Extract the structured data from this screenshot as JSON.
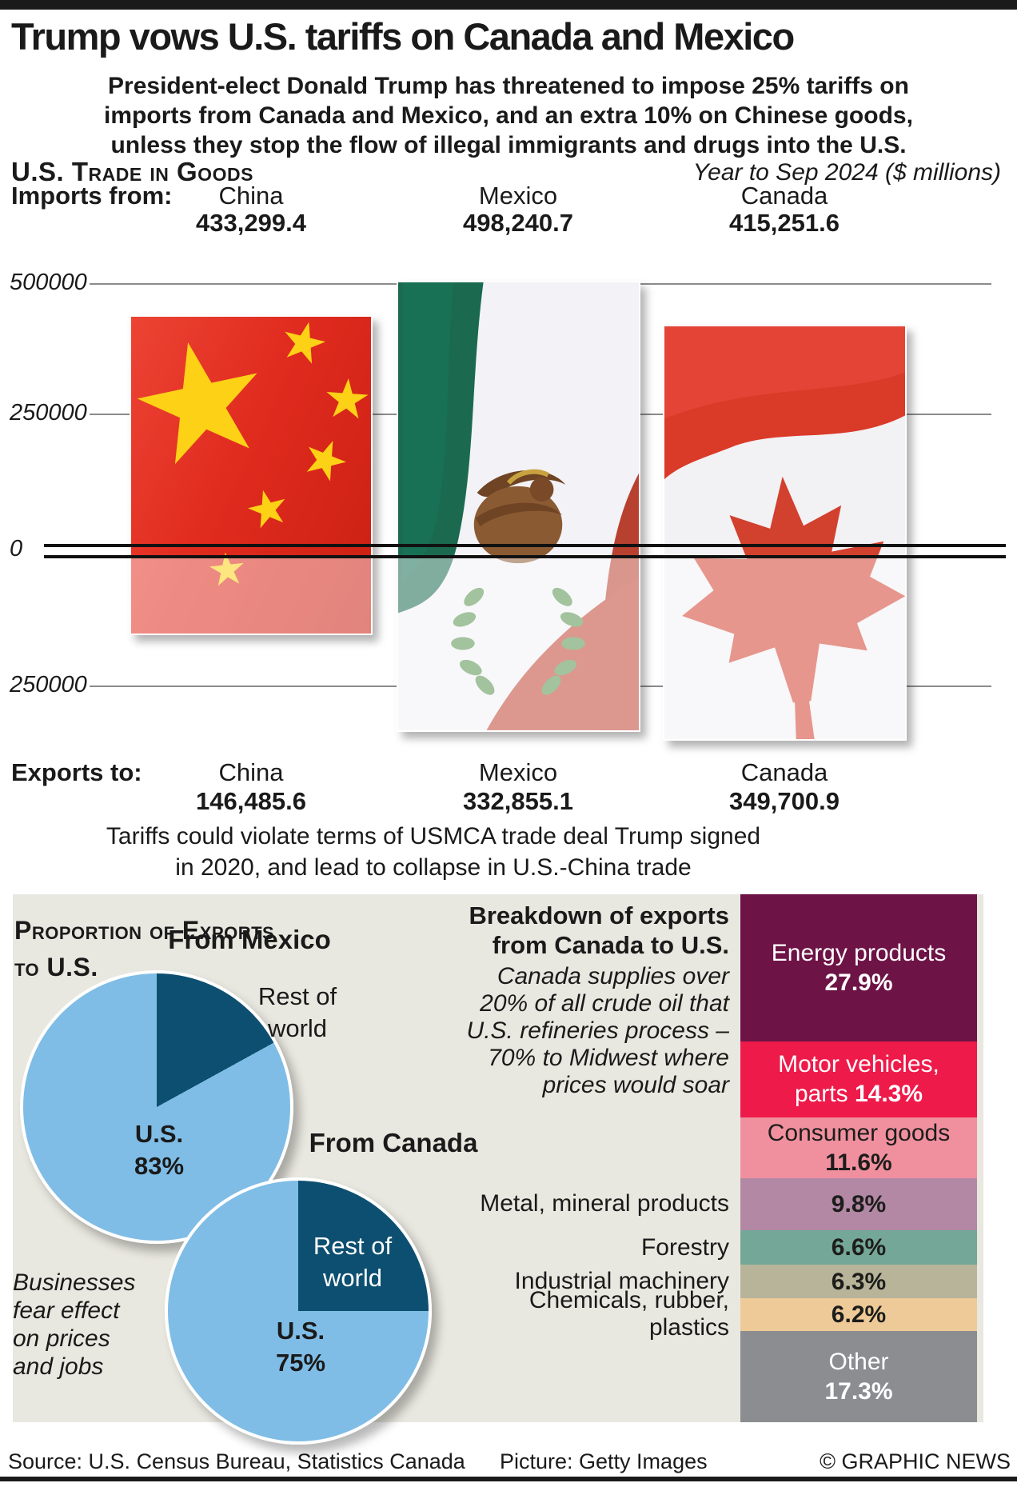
{
  "header": {
    "title": "Trump vows U.S. tariffs on Canada and Mexico",
    "intro_lines": [
      "President-elect Donald Trump has threatened to impose 25% tariffs on",
      "imports from Canada and Mexico, and an extra 10% on Chinese goods,",
      "unless they stop the flow of illegal immigrants and drugs into the U.S."
    ]
  },
  "trade": {
    "heading": "U.S. Trade in Goods",
    "period": "Year to Sep 2024 ($ millions)",
    "imports_label": "Imports from:",
    "exports_label": "Exports to:",
    "countries": [
      "China",
      "Mexico",
      "Canada"
    ],
    "import_values": [
      "433,299.4",
      "498,240.7",
      "415,251.6"
    ],
    "export_values": [
      "146,485.6",
      "332,855.1",
      "349,700.9"
    ],
    "axis": {
      "t500": "500000",
      "t250": "250000",
      "t0": "0",
      "b250": "250000"
    },
    "note_lines": [
      "Tariffs could violate terms of USMCA trade deal Trump signed",
      "in 2020, and lead to collapse in U.S.-China trade"
    ]
  },
  "proportion": {
    "heading_line1": "Proportion of Exports",
    "heading_line2": "to U.S.",
    "mexico": {
      "heading": "From Mexico",
      "us_label": "U.S.",
      "us_pct": "83%",
      "row_line1": "Rest of",
      "row_line2": "world"
    },
    "canada": {
      "heading": "From Canada",
      "us_label": "U.S.",
      "us_pct": "75%",
      "row_line1": "Rest of",
      "row_line2": "world"
    },
    "aside_lines": [
      "Businesses",
      "fear effect",
      "on prices",
      "and jobs"
    ]
  },
  "breakdown": {
    "title_line1": "Breakdown of exports",
    "title_line2": "from Canada to U.S.",
    "note_lines": [
      "Canada supplies over",
      "20% of all crude oil that",
      "U.S. refineries process –",
      "70% to Midwest where",
      "prices would soar"
    ]
  },
  "footer": {
    "source": "Source: U.S. Census Bureau, Statistics Canada",
    "picture": "Picture: Getty Images",
    "copyright": "© GRAPHIC NEWS"
  },
  "chart_data": [
    {
      "type": "bar",
      "title": "U.S. trade in goods",
      "subtitle": "Year to Sep 2024 ($ millions)",
      "orientation": "diverging-vertical-flag-bars",
      "categories": [
        "China",
        "Mexico",
        "Canada"
      ],
      "series": [
        {
          "name": "Imports from",
          "values": [
            433299.4,
            498240.7,
            415251.6
          ]
        },
        {
          "name": "Exports to",
          "values": [
            146485.6,
            332855.1,
            349700.9
          ]
        }
      ],
      "axis_ticks": [
        500000,
        250000,
        0,
        250000
      ],
      "ylim": [
        -375000,
        520000
      ],
      "grid": true
    },
    {
      "type": "pie",
      "title": "Proportion of exports to U.S. — From Mexico",
      "slices": [
        {
          "label": "U.S.",
          "value": 83,
          "color": "#7fbde6"
        },
        {
          "label": "Rest of world",
          "value": 17,
          "color": "#0d4f70"
        }
      ]
    },
    {
      "type": "pie",
      "title": "Proportion of exports to U.S. — From Canada",
      "slices": [
        {
          "label": "U.S.",
          "value": 75,
          "color": "#7fbde6"
        },
        {
          "label": "Rest of world",
          "value": 25,
          "color": "#0d4f70"
        }
      ]
    },
    {
      "type": "bar",
      "title": "Breakdown of exports from Canada to U.S.",
      "orientation": "stacked-vertical",
      "rows": [
        {
          "label": "Energy products",
          "value": 27.9,
          "pct": "27.9%",
          "color": "#6d1346",
          "text_color": "#ffffff",
          "label_pos": "inside",
          "lines_inside": [
            "Energy products"
          ]
        },
        {
          "label": "Motor vehicles, parts",
          "value": 14.3,
          "pct": "14.3%",
          "color": "#ee1a4a",
          "text_color": "#ffffff",
          "label_pos": "inside",
          "lines_inside": [
            "Motor vehicles,",
            "parts"
          ],
          "pct_inline": true
        },
        {
          "label": "Consumer goods",
          "value": 11.6,
          "pct": "11.6%",
          "color": "#f0909f",
          "text_color": "#1d1d1b",
          "label_pos": "inside",
          "lines_inside": [
            "Consumer goods"
          ]
        },
        {
          "label": "Metal, mineral products",
          "value": 9.8,
          "pct": "9.8%",
          "color": "#b288a4",
          "text_color": "#1d1d1b",
          "label_pos": "left",
          "lines_outside": [
            "Metal, mineral products"
          ]
        },
        {
          "label": "Forestry",
          "value": 6.6,
          "pct": "6.6%",
          "color": "#74a797",
          "text_color": "#1d1d1b",
          "label_pos": "left",
          "lines_outside": [
            "Forestry"
          ]
        },
        {
          "label": "Industrial machinery",
          "value": 6.3,
          "pct": "6.3%",
          "color": "#b7b49a",
          "text_color": "#1d1d1b",
          "label_pos": "left",
          "lines_outside": [
            "Industrial machinery"
          ]
        },
        {
          "label": "Chemicals, rubber, plastics",
          "value": 6.2,
          "pct": "6.2%",
          "color": "#edca97",
          "text_color": "#1d1d1b",
          "label_pos": "left",
          "lines_outside": [
            "Chemicals, rubber,",
            "plastics"
          ]
        },
        {
          "label": "Other",
          "value": 17.3,
          "pct": "17.3%",
          "color": "#8b8d90",
          "text_color": "#ffffff",
          "label_pos": "inside",
          "lines_inside": [
            "Other"
          ]
        }
      ]
    }
  ]
}
